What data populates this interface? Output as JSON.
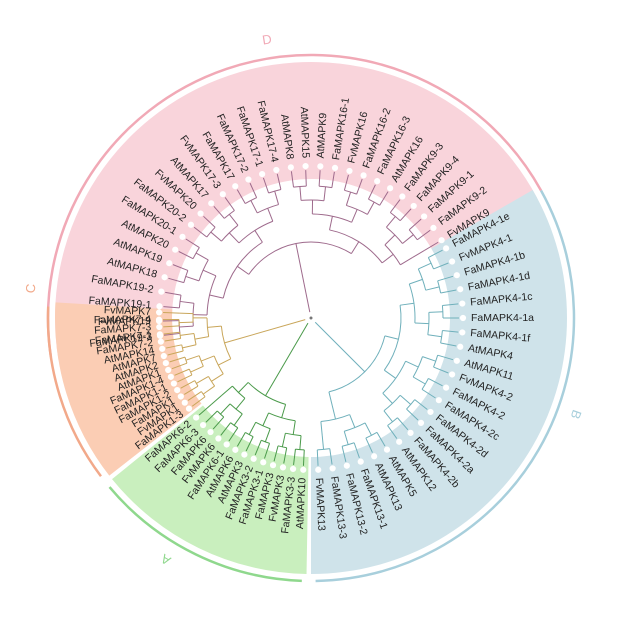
{
  "clades": [
    {
      "id": "D",
      "label": "D",
      "fill": "#f9d4db",
      "arc": "#f1a9b6",
      "branch": "#9e6a8c",
      "leaves": [
        "FaMAPK19-3",
        "FvMAPK19",
        "FaMAPK19-1",
        "FaMAPK19-2",
        "AtMAPK18",
        "AtMAPK19",
        "AtMAPK20",
        "FaMAPK20-1",
        "FaMAPK20-2",
        "FvMAPK20",
        "AtMAPK17",
        "FvMAPK17-3",
        "FaMAPK17",
        "FaMAPK17-2",
        "FaMAPK17-1",
        "FaMAPK17-4",
        "AtMAPK8",
        "AtMAPK15",
        "AtMAPK9",
        "FaMAPK16-1",
        "FvMAPK16",
        "FaMAPK16-2",
        "FaMAPK16-3",
        "AtMAPK16",
        "FaMAPK9-3",
        "FaMAPK9-4",
        "FaMAPK9-1",
        "FaMAPK9-2",
        "FvMAPK9"
      ]
    },
    {
      "id": "B",
      "label": "B",
      "fill": "#cfe3ea",
      "arc": "#a8cfdc",
      "branch": "#6fb0bb",
      "leaves": [
        "FaMAPK4-1e",
        "FvMAPK4-1",
        "FaMAPK4-1b",
        "FaMAPK4-1d",
        "FaMAPK4-1c",
        "FaMAPK4-1a",
        "FaMAPK4-1f",
        "AtMAPK4",
        "AtMAPK11",
        "FvMAPK4-2",
        "FaMAPK4-2",
        "FaMAPK4-2c",
        "FaMAPK4-2d",
        "FaMAPK4-2a",
        "FaMAPK4-2b",
        "AtMAPK12",
        "AtMAPK5",
        "AtMAPK13",
        "FaMAPK13-1",
        "FaMAPK13-2",
        "FaMAPK13-3",
        "FvMAPK13"
      ]
    },
    {
      "id": "A",
      "label": "A",
      "fill": "#c9efbe",
      "arc": "#8fd88d",
      "branch": "#4a9a4a",
      "leaves": [
        "AtMAPK10",
        "FaMAPK3-3",
        "FvMAPK3",
        "FaMAPK3",
        "FaMAPK3-1",
        "FaMAPK3-2",
        "AtMAPK3",
        "AtMAPK6",
        "FaMAPK6-1",
        "FvMAPK6",
        "FaMAPK6",
        "FaMAPK6-3",
        "FaMAPK6-2"
      ]
    },
    {
      "id": "C",
      "label": "C",
      "fill": "#fbcdb4",
      "arc": "#f2a98a",
      "branch": "#c9a65a",
      "leaves": [
        "FaMAPK1-3",
        "FvMAPK1",
        "FaMAPK1",
        "FaMAPK1-2",
        "FaMAPK1-1",
        "FaMAPK1-4",
        "AtMAPK1",
        "AtMAPK2",
        "AtMAPK7",
        "AtMAPK14",
        "FaMAPK7-2",
        "FaMAPK7-1",
        "FaMAPK7-3",
        "FaMAPK7-4",
        "FvMAPK7"
      ]
    }
  ]
}
